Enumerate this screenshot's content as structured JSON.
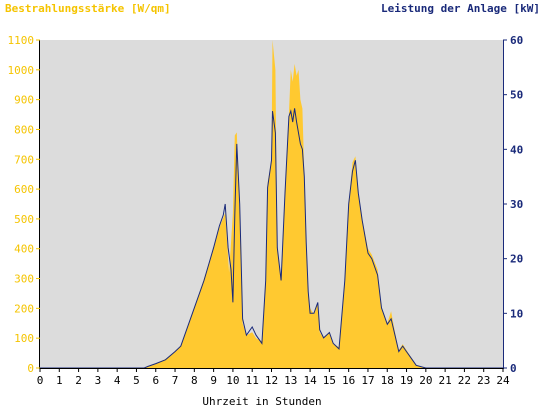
{
  "chart_data": {
    "type": "area",
    "ylabel_left": "Bestrahlungsstärke [W/qm]",
    "ylabel_right": "Leistung der Anlage [kW]",
    "xlabel": "Uhrzeit in Stunden",
    "xlim": [
      0,
      24
    ],
    "ylim_left": [
      0,
      1100
    ],
    "ylim_right": [
      0,
      60
    ],
    "x_ticks": [
      "0",
      "1",
      "2",
      "3",
      "4",
      "5",
      "6",
      "7",
      "8",
      "9",
      "10",
      "11",
      "12",
      "13",
      "14",
      "15",
      "16",
      "17",
      "18",
      "19",
      "20",
      "21",
      "22",
      "23",
      "24"
    ],
    "y_ticks_left": [
      "0",
      "100",
      "200",
      "300",
      "400",
      "500",
      "600",
      "700",
      "800",
      "900",
      "1000",
      "1100"
    ],
    "y_ticks_right": [
      "0",
      "10",
      "20",
      "30",
      "40",
      "50",
      "60"
    ],
    "grid": false,
    "plot_background": "#dcdcdc",
    "series": [
      {
        "name": "Bestrahlungsstärke [W/qm]",
        "axis": "left",
        "color": "#ffc930",
        "style": "area",
        "points": [
          [
            0,
            0
          ],
          [
            5.4,
            0
          ],
          [
            5.6,
            5
          ],
          [
            6,
            15
          ],
          [
            6.5,
            30
          ],
          [
            7,
            55
          ],
          [
            7.3,
            75
          ],
          [
            7.6,
            130
          ],
          [
            8,
            200
          ],
          [
            8.5,
            300
          ],
          [
            9,
            400
          ],
          [
            9.3,
            470
          ],
          [
            9.6,
            520
          ],
          [
            9.8,
            320
          ],
          [
            10,
            520
          ],
          [
            10.1,
            780
          ],
          [
            10.2,
            790
          ],
          [
            10.35,
            500
          ],
          [
            10.5,
            150
          ],
          [
            10.7,
            110
          ],
          [
            11,
            120
          ],
          [
            11.2,
            100
          ],
          [
            11.5,
            90
          ],
          [
            11.7,
            300
          ],
          [
            11.8,
            620
          ],
          [
            12,
            700
          ],
          [
            12.05,
            1100
          ],
          [
            12.2,
            1000
          ],
          [
            12.3,
            400
          ],
          [
            12.5,
            300
          ],
          [
            12.7,
            600
          ],
          [
            12.9,
            850
          ],
          [
            13,
            1000
          ],
          [
            13.1,
            960
          ],
          [
            13.2,
            1020
          ],
          [
            13.3,
            980
          ],
          [
            13.4,
            1000
          ],
          [
            13.5,
            900
          ],
          [
            13.6,
            870
          ],
          [
            13.7,
            650
          ],
          [
            13.8,
            430
          ],
          [
            13.9,
            250
          ],
          [
            14,
            200
          ],
          [
            14.2,
            180
          ],
          [
            14.4,
            220
          ],
          [
            14.5,
            120
          ],
          [
            14.7,
            100
          ],
          [
            15,
            120
          ],
          [
            15.2,
            80
          ],
          [
            15.5,
            70
          ],
          [
            15.8,
            300
          ],
          [
            16,
            550
          ],
          [
            16.2,
            690
          ],
          [
            16.35,
            710
          ],
          [
            16.5,
            580
          ],
          [
            16.7,
            500
          ],
          [
            17,
            400
          ],
          [
            17.2,
            380
          ],
          [
            17.5,
            330
          ],
          [
            17.7,
            200
          ],
          [
            18,
            150
          ],
          [
            18.2,
            190
          ],
          [
            18.4,
            120
          ],
          [
            18.6,
            60
          ],
          [
            18.8,
            80
          ],
          [
            19,
            60
          ],
          [
            19.2,
            40
          ],
          [
            19.5,
            10
          ],
          [
            20,
            0
          ],
          [
            24,
            0
          ]
        ]
      },
      {
        "name": "Leistung der Anlage [kW]",
        "axis": "right",
        "color": "#1a2a7a",
        "style": "line",
        "points": [
          [
            0,
            0
          ],
          [
            5.4,
            0
          ],
          [
            5.6,
            0.3
          ],
          [
            6,
            0.8
          ],
          [
            6.5,
            1.5
          ],
          [
            7,
            3
          ],
          [
            7.3,
            4
          ],
          [
            7.6,
            7
          ],
          [
            8,
            11
          ],
          [
            8.5,
            16
          ],
          [
            9,
            22
          ],
          [
            9.3,
            26
          ],
          [
            9.5,
            28
          ],
          [
            9.6,
            30
          ],
          [
            9.75,
            22
          ],
          [
            9.9,
            18
          ],
          [
            10,
            12
          ],
          [
            10.1,
            28
          ],
          [
            10.2,
            41
          ],
          [
            10.35,
            30
          ],
          [
            10.5,
            9
          ],
          [
            10.7,
            6
          ],
          [
            11,
            7.5
          ],
          [
            11.2,
            6
          ],
          [
            11.5,
            4.5
          ],
          [
            11.7,
            16
          ],
          [
            11.8,
            33
          ],
          [
            12,
            38
          ],
          [
            12.05,
            47
          ],
          [
            12.2,
            43
          ],
          [
            12.3,
            22
          ],
          [
            12.5,
            16
          ],
          [
            12.7,
            32
          ],
          [
            12.9,
            46
          ],
          [
            13,
            47
          ],
          [
            13.1,
            45
          ],
          [
            13.2,
            47.5
          ],
          [
            13.3,
            45
          ],
          [
            13.4,
            43
          ],
          [
            13.5,
            41
          ],
          [
            13.6,
            40
          ],
          [
            13.7,
            35
          ],
          [
            13.8,
            23
          ],
          [
            13.9,
            14
          ],
          [
            14,
            10
          ],
          [
            14.2,
            10
          ],
          [
            14.4,
            12
          ],
          [
            14.5,
            7
          ],
          [
            14.7,
            5.5
          ],
          [
            15,
            6.5
          ],
          [
            15.2,
            4.5
          ],
          [
            15.5,
            3.5
          ],
          [
            15.8,
            16
          ],
          [
            16,
            30
          ],
          [
            16.2,
            36
          ],
          [
            16.35,
            38
          ],
          [
            16.5,
            32
          ],
          [
            16.7,
            27
          ],
          [
            17,
            21
          ],
          [
            17.2,
            20
          ],
          [
            17.5,
            17
          ],
          [
            17.7,
            11
          ],
          [
            18,
            8
          ],
          [
            18.2,
            9
          ],
          [
            18.4,
            6
          ],
          [
            18.6,
            3
          ],
          [
            18.8,
            4
          ],
          [
            19,
            3
          ],
          [
            19.2,
            2
          ],
          [
            19.5,
            0.5
          ],
          [
            20,
            0
          ],
          [
            24,
            0
          ]
        ]
      }
    ]
  }
}
